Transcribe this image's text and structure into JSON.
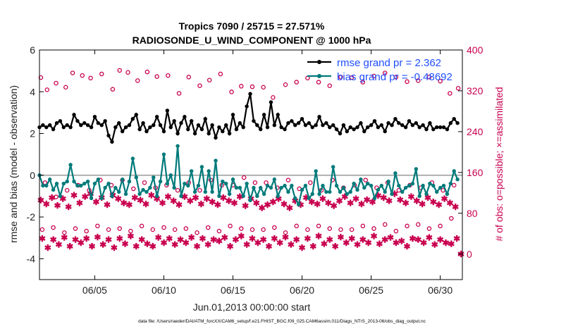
{
  "chart_data": {
    "type": "line",
    "title": "Tropics 7090 / 25715 = 27.571%",
    "subtitle": "RADIOSONDE_U_WIND_COMPONENT @ 1000 hPa",
    "xlabel": "Jun.01,2013 00:00:00 start",
    "ylabel_left": "rmse and bias (model - observation)",
    "ylabel_right": "# of obs: o=possible; ×=assimilated",
    "footer": "data file: /Users/raeder/DAI/ATM_forcXX/CAM6_setup/f.e21.FHIST_BGC.f09_025.CAM6assim.011/Diags_NTrS_2013-06/obs_diag_output.nc",
    "xlim": [
      1,
      31.6
    ],
    "ylim_left": [
      -5,
      6
    ],
    "ylim_right": [
      -50,
      400
    ],
    "yticks_left": [
      "6",
      "4",
      "2",
      "0",
      "-2",
      "-4"
    ],
    "yticks_left_values": [
      6,
      4,
      2,
      0,
      -2,
      -4
    ],
    "yticks_right": [
      "400",
      "320",
      "240",
      "160",
      "80",
      "0"
    ],
    "yticks_right_values": [
      400,
      320,
      240,
      160,
      80,
      0
    ],
    "xticks": [
      "06/05",
      "06/10",
      "06/15",
      "06/20",
      "06/25",
      "06/30"
    ],
    "xticks_values": [
      5,
      10,
      15,
      20,
      25,
      30
    ],
    "zero_line": 0,
    "colors": {
      "rmse": "#000000",
      "bias": "#007a7a",
      "count": "#c8004e",
      "zero": "#b0b0b0",
      "legend_text": "#1f4fff"
    },
    "legend": [
      {
        "name": "rmse grand pr = 2.362"
      },
      {
        "name": "bias grand pr = -0.48692"
      }
    ],
    "x": [
      1.0,
      1.25,
      1.5,
      1.75,
      2.0,
      2.25,
      2.5,
      2.75,
      3.0,
      3.25,
      3.5,
      3.75,
      4.0,
      4.25,
      4.5,
      4.75,
      5.0,
      5.25,
      5.5,
      5.75,
      6.0,
      6.25,
      6.5,
      6.75,
      7.0,
      7.25,
      7.5,
      7.75,
      8.0,
      8.25,
      8.5,
      8.75,
      9.0,
      9.25,
      9.5,
      9.75,
      10.0,
      10.25,
      10.5,
      10.75,
      11.0,
      11.25,
      11.5,
      11.75,
      12.0,
      12.25,
      12.5,
      12.75,
      13.0,
      13.25,
      13.5,
      13.75,
      14.0,
      14.25,
      14.5,
      14.75,
      15.0,
      15.25,
      15.5,
      15.75,
      16.0,
      16.25,
      16.5,
      16.75,
      17.0,
      17.25,
      17.5,
      17.75,
      18.0,
      18.25,
      18.5,
      18.75,
      19.0,
      19.25,
      19.5,
      19.75,
      20.0,
      20.25,
      20.5,
      20.75,
      21.0,
      21.25,
      21.5,
      21.75,
      22.0,
      22.25,
      22.5,
      22.75,
      23.0,
      23.25,
      23.5,
      23.75,
      24.0,
      24.25,
      24.5,
      24.75,
      25.0,
      25.25,
      25.5,
      25.75,
      26.0,
      26.25,
      26.5,
      26.75,
      27.0,
      27.25,
      27.5,
      27.75,
      28.0,
      28.25,
      28.5,
      28.75,
      29.0,
      29.25,
      29.5,
      29.75,
      30.0,
      30.25,
      30.5,
      30.75,
      31.0,
      31.25
    ],
    "series": [
      {
        "name": "rmse",
        "marker": "dot-line",
        "values": [
          2.3,
          2.4,
          2.3,
          2.4,
          2.2,
          2.5,
          2.6,
          2.3,
          2.4,
          2.3,
          2.9,
          2.6,
          2.4,
          2.5,
          2.4,
          2.3,
          2.8,
          2.5,
          2.4,
          2.6,
          1.9,
          1.6,
          2.3,
          2.5,
          2.1,
          2.3,
          2.4,
          2.7,
          2.9,
          2.2,
          2.5,
          2.1,
          2.3,
          2.4,
          2.8,
          2.4,
          2.1,
          3.1,
          2.3,
          2.6,
          2.0,
          2.5,
          2.8,
          2.2,
          2.6,
          2.0,
          2.4,
          2.2,
          2.7,
          2.0,
          2.4,
          1.8,
          2.3,
          2.1,
          2.4,
          2.0,
          2.9,
          2.2,
          2.5,
          2.3,
          3.3,
          3.9,
          2.6,
          2.4,
          2.2,
          2.9,
          2.3,
          3.5,
          2.4,
          2.9,
          2.3,
          2.2,
          2.5,
          2.6,
          2.4,
          2.5,
          2.7,
          2.4,
          2.5,
          2.3,
          2.4,
          2.8,
          2.4,
          2.5,
          2.3,
          2.4,
          2.2,
          2.0,
          2.4,
          2.1,
          2.3,
          2.2,
          2.3,
          2.5,
          2.1,
          2.3,
          2.4,
          2.6,
          2.3,
          2.4,
          2.1,
          2.5,
          2.4,
          2.7,
          2.5,
          2.4,
          2.3,
          2.6,
          2.4,
          2.5,
          2.3,
          2.4,
          2.2,
          2.5,
          2.2,
          2.3,
          2.3,
          2.3,
          2.2,
          2.5,
          2.7,
          2.5
        ]
      },
      {
        "name": "bias",
        "marker": "dot-line",
        "values": [
          0.0,
          -0.5,
          -0.5,
          -0.2,
          -0.7,
          -0.4,
          -1.0,
          -0.4,
          -0.3,
          0.5,
          -0.3,
          -0.5,
          -0.5,
          -0.4,
          -0.3,
          -1.1,
          -0.4,
          -0.2,
          -1.1,
          -0.6,
          -0.4,
          -1.0,
          -0.6,
          -0.8,
          -0.2,
          -0.9,
          -0.3,
          0.8,
          -0.1,
          -0.9,
          -0.7,
          -0.8,
          -0.6,
          -0.1,
          -1.0,
          -0.3,
          1.0,
          -0.4,
          0.0,
          -0.6,
          1.4,
          -1.0,
          -0.4,
          -0.5,
          0.2,
          -0.8,
          -0.5,
          0.4,
          -0.8,
          0.2,
          -0.8,
          0.7,
          -1.0,
          -0.3,
          -0.4,
          -0.9,
          -0.2,
          -0.6,
          -0.6,
          -1.0,
          -0.4,
          -1.2,
          -0.6,
          -1.0,
          -0.6,
          -0.9,
          -0.5,
          -0.6,
          -0.2,
          -1.0,
          -0.6,
          -0.5,
          -0.8,
          -0.5,
          -1.1,
          -1.4,
          -0.7,
          -0.5,
          -1.1,
          -0.9,
          0.2,
          -0.9,
          -0.5,
          -0.8,
          -0.8,
          0.4,
          -0.5,
          -0.8,
          -0.6,
          -0.9,
          -0.8,
          -0.4,
          -0.7,
          -0.2,
          -0.6,
          -0.4,
          -0.5,
          -1.1,
          -0.7,
          -0.5,
          -0.8,
          -0.3,
          -0.9,
          0.1,
          -0.5,
          -0.8,
          -0.6,
          -0.5,
          -0.4,
          0.3,
          -1.0,
          -0.5,
          -0.9,
          -0.4,
          -0.5,
          -0.8,
          -0.6,
          -0.5,
          -0.9,
          -0.4,
          0.2,
          -0.2
        ]
      }
    ],
    "count_series": [
      {
        "name": "possible",
        "marker": "o",
        "x": [
          1.1,
          1.55,
          2.2,
          2.9,
          3.4,
          4.1,
          4.7,
          5.5,
          6.3,
          6.8,
          7.4,
          8.1,
          8.8,
          9.5,
          10.3,
          11.1,
          11.8,
          12.6,
          13.3,
          14.1,
          14.9,
          15.6,
          16.4,
          17.2,
          17.9,
          18.8,
          19.6,
          20.4,
          21.2,
          22.0,
          22.8,
          23.6,
          24.4,
          25.2,
          26.0,
          26.8,
          27.6,
          28.4,
          29.2,
          30.0,
          30.7,
          31.3
        ],
        "values": [
          346,
          322,
          335,
          327,
          355,
          350,
          345,
          353,
          323,
          360,
          356,
          340,
          357,
          348,
          350,
          315,
          347,
          330,
          341,
          353,
          318,
          329,
          328,
          327,
          307,
          332,
          337,
          345,
          337,
          330,
          347,
          346,
          337,
          349,
          355,
          347,
          338,
          340,
          347,
          339,
          315,
          325
        ]
      },
      {
        "name": "possible-low",
        "marker": "o",
        "x": [
          1.4,
          2.2,
          3.0,
          3.8,
          4.6,
          5.4,
          6.2,
          7.0,
          7.8,
          8.6,
          9.4,
          10.2,
          11.0,
          11.8,
          12.6,
          13.4,
          14.2,
          15.0,
          15.8,
          16.6,
          17.4,
          18.2,
          19.0,
          19.8,
          20.6,
          21.4,
          22.2,
          23.0,
          23.8,
          24.6,
          25.4,
          26.2,
          27.0,
          27.8,
          28.6,
          29.4,
          30.2,
          31.0
        ],
        "values": [
          140,
          112,
          125,
          135,
          125,
          145,
          135,
          145,
          128,
          140,
          130,
          135,
          125,
          140,
          125,
          145,
          135,
          135,
          150,
          140,
          140,
          130,
          145,
          128,
          140,
          125,
          145,
          130,
          135,
          145,
          130,
          140,
          125,
          135,
          130,
          140,
          125,
          135
        ]
      },
      {
        "name": "possible-2",
        "marker": "o",
        "x": [
          1.2,
          2.0,
          2.8,
          3.6,
          4.4,
          5.2,
          6.0,
          6.8,
          7.6,
          8.4,
          9.2,
          10.0,
          10.8,
          11.6,
          12.4,
          13.2,
          14.0,
          14.8,
          15.6,
          16.4,
          17.2,
          18.0,
          18.8,
          19.6,
          20.4,
          21.2,
          22.0,
          22.8,
          23.6,
          24.4,
          25.2,
          26.0,
          26.8,
          27.6,
          28.4,
          29.2,
          30.0,
          30.8
        ],
        "values": [
          48,
          52,
          42,
          50,
          45,
          55,
          48,
          50,
          45,
          55,
          48,
          52,
          48,
          50,
          42,
          52,
          45,
          55,
          50,
          48,
          48,
          52,
          42,
          55,
          48,
          55,
          50,
          48,
          48,
          55,
          50,
          58,
          45,
          55,
          58,
          50,
          55,
          70
        ]
      },
      {
        "name": "assimilated",
        "marker": "x",
        "x": [
          1.1,
          1.5,
          1.9,
          2.3,
          2.7,
          3.1,
          3.5,
          3.9,
          4.3,
          4.7,
          5.1,
          5.5,
          5.9,
          6.3,
          6.7,
          7.1,
          7.5,
          7.9,
          8.3,
          8.7,
          9.1,
          9.5,
          9.9,
          10.3,
          10.7,
          11.1,
          11.5,
          11.9,
          12.3,
          12.7,
          13.1,
          13.5,
          13.9,
          14.3,
          14.7,
          15.1,
          15.5,
          15.9,
          16.3,
          16.7,
          17.1,
          17.5,
          17.9,
          18.3,
          18.7,
          19.1,
          19.5,
          19.9,
          20.3,
          20.7,
          21.1,
          21.5,
          21.9,
          22.3,
          22.7,
          23.1,
          23.5,
          23.9,
          24.3,
          24.7,
          25.1,
          25.5,
          25.9,
          26.3,
          26.7,
          27.1,
          27.5,
          27.9,
          28.3,
          28.7,
          29.1,
          29.5,
          29.9,
          30.3,
          30.7,
          31.1
        ],
        "values": [
          105,
          98,
          110,
          95,
          108,
          92,
          115,
          100,
          112,
          118,
          102,
          110,
          96,
          115,
          108,
          100,
          96,
          110,
          105,
          98,
          115,
          108,
          100,
          112,
          104,
          96,
          112,
          104,
          110,
          98,
          108,
          102,
          96,
          110,
          104,
          100,
          112,
          94,
          108,
          100,
          90,
          96,
          102,
          108,
          98,
          90,
          104,
          96,
          110,
          102,
          98,
          108,
          100,
          94,
          104,
          112,
          100,
          108,
          98,
          106,
          102,
          114,
          110,
          104,
          118,
          106,
          100,
          112,
          104,
          98,
          110,
          102,
          96,
          108,
          100,
          92
        ]
      },
      {
        "name": "assimilated-2",
        "marker": "x",
        "x": [
          1.2,
          1.6,
          2.0,
          2.4,
          2.8,
          3.2,
          3.6,
          4.0,
          4.4,
          4.8,
          5.2,
          5.6,
          6.0,
          6.4,
          6.8,
          7.2,
          7.6,
          8.0,
          8.4,
          8.8,
          9.2,
          9.6,
          10.0,
          10.4,
          10.8,
          11.2,
          11.6,
          12.0,
          12.4,
          12.8,
          13.2,
          13.6,
          14.0,
          14.4,
          14.8,
          15.2,
          15.6,
          16.0,
          16.4,
          16.8,
          17.2,
          17.6,
          18.0,
          18.4,
          18.8,
          19.2,
          19.6,
          20.0,
          20.4,
          20.8,
          21.2,
          21.6,
          22.0,
          22.4,
          22.8,
          23.2,
          23.6,
          24.0,
          24.4,
          24.8,
          25.2,
          25.6,
          26.0,
          26.4,
          26.8,
          27.2,
          27.6,
          28.0,
          28.4,
          28.8,
          29.2,
          29.6,
          30.0,
          30.4,
          30.8,
          31.2
        ],
        "values": [
          30,
          12,
          28,
          18,
          32,
          15,
          28,
          22,
          30,
          15,
          33,
          18,
          28,
          12,
          30,
          20,
          35,
          15,
          28,
          20,
          15,
          32,
          22,
          30,
          18,
          28,
          22,
          32,
          15,
          30,
          18,
          28,
          25,
          32,
          15,
          28,
          35,
          18,
          30,
          22,
          28,
          15,
          30,
          22,
          33,
          18,
          28,
          12,
          30,
          15,
          35,
          20,
          28,
          15,
          33,
          22,
          30,
          18,
          28,
          22,
          35,
          20,
          28,
          32,
          22,
          25,
          15,
          30,
          28,
          22,
          32,
          18,
          28,
          22,
          20,
          30
        ]
      },
      {
        "name": "assimilated-3",
        "marker": "x",
        "x": [
          31.5
        ],
        "values": [
          0
        ]
      }
    ]
  }
}
